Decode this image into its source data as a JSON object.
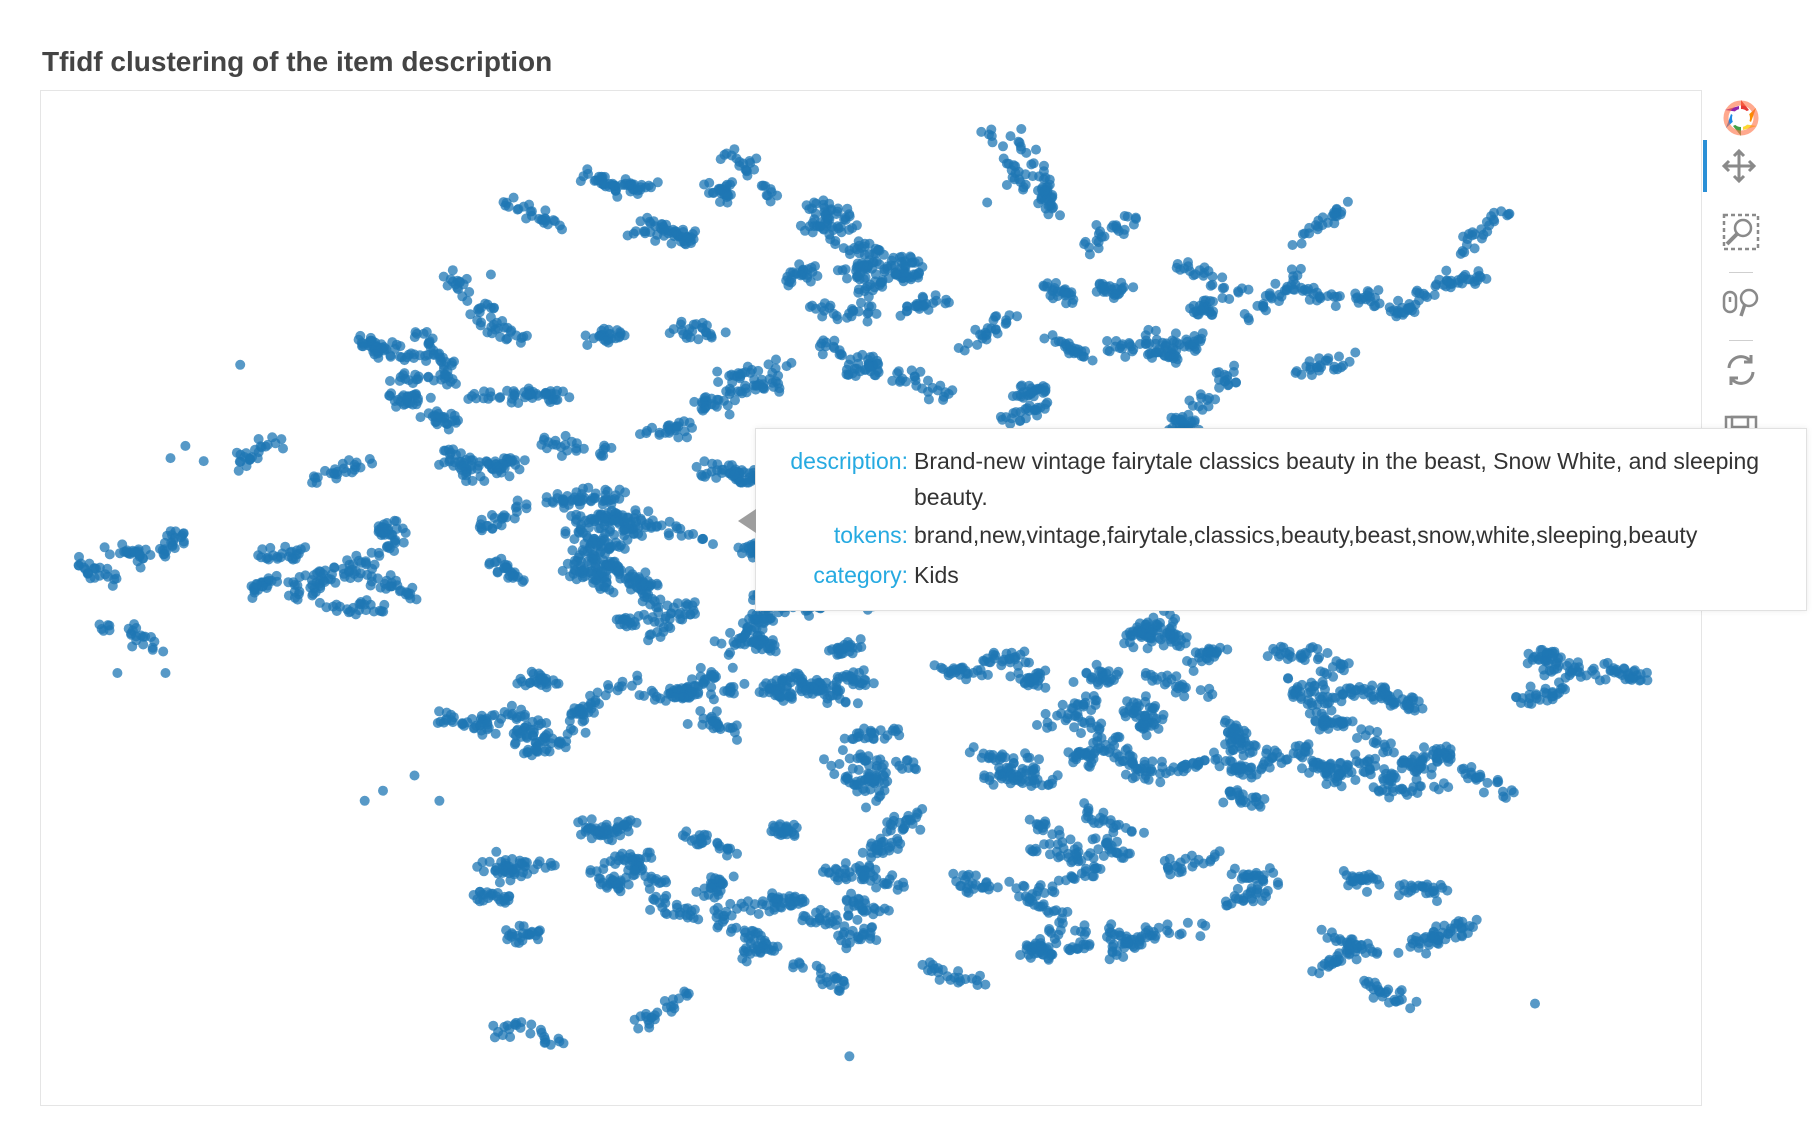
{
  "title": "Tfidf clustering of the item description",
  "toolbar": {
    "items": [
      {
        "name": "bokeh-logo-icon",
        "active": false
      },
      {
        "name": "pan-tool-icon",
        "active": true
      },
      {
        "name": "box-zoom-tool-icon",
        "active": false
      },
      {
        "name": "wheel-zoom-tool-icon",
        "active": false
      },
      {
        "name": "reset-tool-icon",
        "active": false
      },
      {
        "name": "save-tool-icon",
        "active": false
      },
      {
        "name": "hover-tool-icon",
        "active": false
      }
    ]
  },
  "tooltip": {
    "description_label": "description:",
    "description_value": "Brand-new vintage fairytale classics beauty in the beast, Snow White, and sleeping beauty.",
    "tokens_label": "tokens:",
    "tokens_value": "brand,new,vintage,fairytale,classics,beauty,beast,snow,white,sleeping,beauty",
    "category_label": "category:",
    "category_value": "Kids"
  },
  "chart_data": {
    "type": "scatter",
    "title": "Tfidf clustering of the item description",
    "marker_color": "#1f77b4",
    "marker_alpha": 0.75,
    "grid": false,
    "axes_visible": false,
    "clusters": [
      {
        "cx": 0.4,
        "cy": 0.12,
        "sx": 0.055,
        "sy": 0.025,
        "rot": 15,
        "n": 260
      },
      {
        "cx": 0.22,
        "cy": 0.25,
        "sx": 0.045,
        "sy": 0.008,
        "rot": 25,
        "n": 80
      },
      {
        "cx": 0.595,
        "cy": 0.1,
        "sx": 0.018,
        "sy": 0.03,
        "rot": 40,
        "n": 70
      },
      {
        "cx": 0.5,
        "cy": 0.22,
        "sx": 0.05,
        "sy": 0.05,
        "rot": 0,
        "n": 320
      },
      {
        "cx": 0.74,
        "cy": 0.23,
        "sx": 0.09,
        "sy": 0.05,
        "rot": -10,
        "n": 520
      },
      {
        "cx": 0.36,
        "cy": 0.3,
        "sx": 0.06,
        "sy": 0.05,
        "rot": 10,
        "n": 380
      },
      {
        "cx": 0.24,
        "cy": 0.38,
        "sx": 0.06,
        "sy": 0.05,
        "rot": 0,
        "n": 330
      },
      {
        "cx": 0.13,
        "cy": 0.49,
        "sx": 0.045,
        "sy": 0.04,
        "rot": -15,
        "n": 190
      },
      {
        "cx": 0.34,
        "cy": 0.46,
        "sx": 0.05,
        "sy": 0.045,
        "rot": 20,
        "n": 300
      },
      {
        "cx": 0.33,
        "cy": 0.58,
        "sx": 0.065,
        "sy": 0.035,
        "rot": -20,
        "n": 300
      },
      {
        "cx": 0.46,
        "cy": 0.53,
        "sx": 0.05,
        "sy": 0.06,
        "rot": 0,
        "n": 280
      },
      {
        "cx": 0.55,
        "cy": 0.62,
        "sx": 0.06,
        "sy": 0.05,
        "rot": 0,
        "n": 320
      },
      {
        "cx": 0.65,
        "cy": 0.61,
        "sx": 0.05,
        "sy": 0.05,
        "rot": 0,
        "n": 280
      },
      {
        "cx": 0.74,
        "cy": 0.58,
        "sx": 0.045,
        "sy": 0.05,
        "rot": 0,
        "n": 300
      },
      {
        "cx": 0.84,
        "cy": 0.64,
        "sx": 0.045,
        "sy": 0.035,
        "rot": 10,
        "n": 240
      },
      {
        "cx": 0.93,
        "cy": 0.58,
        "sx": 0.03,
        "sy": 0.02,
        "rot": 10,
        "n": 110
      },
      {
        "cx": 0.33,
        "cy": 0.77,
        "sx": 0.04,
        "sy": 0.05,
        "rot": -10,
        "n": 200
      },
      {
        "cx": 0.41,
        "cy": 0.81,
        "sx": 0.035,
        "sy": 0.05,
        "rot": 0,
        "n": 200
      },
      {
        "cx": 0.5,
        "cy": 0.77,
        "sx": 0.04,
        "sy": 0.05,
        "rot": 0,
        "n": 220
      },
      {
        "cx": 0.49,
        "cy": 0.88,
        "sx": 0.03,
        "sy": 0.03,
        "rot": 0,
        "n": 90
      },
      {
        "cx": 0.62,
        "cy": 0.82,
        "sx": 0.04,
        "sy": 0.05,
        "rot": 0,
        "n": 240
      },
      {
        "cx": 0.69,
        "cy": 0.74,
        "sx": 0.035,
        "sy": 0.035,
        "rot": 0,
        "n": 140
      },
      {
        "cx": 0.77,
        "cy": 0.8,
        "sx": 0.04,
        "sy": 0.05,
        "rot": 0,
        "n": 200
      },
      {
        "cx": 0.63,
        "cy": 0.4,
        "sx": 0.05,
        "sy": 0.04,
        "rot": 0,
        "n": 220
      },
      {
        "cx": 0.82,
        "cy": 0.4,
        "sx": 0.05,
        "sy": 0.04,
        "rot": 0,
        "n": 220
      },
      {
        "cx": 0.55,
        "cy": 0.45,
        "sx": 0.03,
        "sy": 0.04,
        "rot": 0,
        "n": 120
      }
    ],
    "outliers": [
      [
        0.046,
        0.574
      ],
      [
        0.075,
        0.574
      ],
      [
        0.12,
        0.27
      ],
      [
        0.087,
        0.35
      ],
      [
        0.098,
        0.365
      ],
      [
        0.078,
        0.362
      ],
      [
        0.195,
        0.7
      ],
      [
        0.206,
        0.69
      ],
      [
        0.225,
        0.675
      ],
      [
        0.24,
        0.7
      ],
      [
        0.271,
        0.181
      ],
      [
        0.9,
        0.9
      ],
      [
        0.77,
        0.87
      ],
      [
        0.487,
        0.952
      ],
      [
        0.57,
        0.11
      ],
      [
        0.06,
        0.47
      ]
    ]
  }
}
